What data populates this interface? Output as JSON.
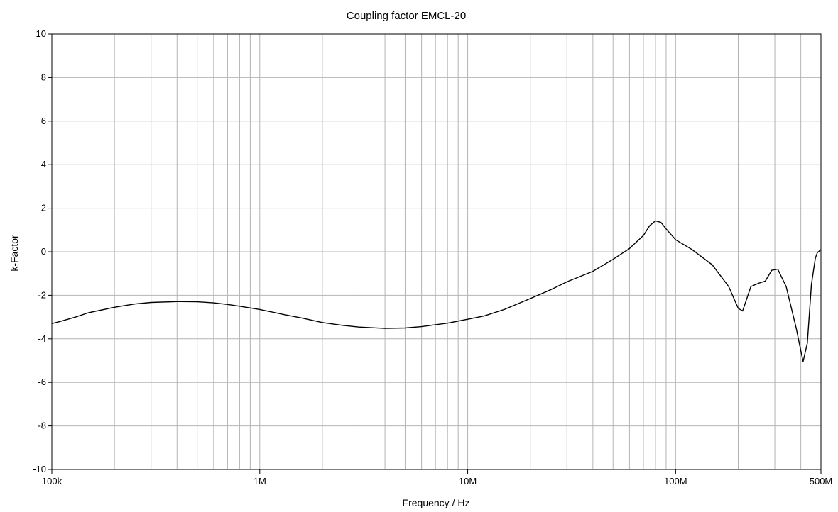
{
  "chart_data": {
    "type": "line",
    "title": "Coupling factor EMCL-20",
    "xlabel": "Frequency / Hz",
    "ylabel": "k-Factor",
    "xscale": "log",
    "xlim": [
      100000,
      500000000
    ],
    "ylim": [
      -10,
      10
    ],
    "grid": true,
    "line_color": "#000000",
    "grid_color": "#b4b4b4",
    "x_tick_labels": [
      {
        "value": 100000,
        "label": "100k"
      },
      {
        "value": 1000000,
        "label": "1M"
      },
      {
        "value": 10000000,
        "label": "10M"
      },
      {
        "value": 100000000,
        "label": "100M"
      },
      {
        "value": 500000000,
        "label": "500M"
      }
    ],
    "y_ticks": [
      10,
      8,
      6,
      4,
      2,
      0,
      -2,
      -4,
      -6,
      -8,
      -10
    ],
    "y_tick_labels": [
      "10",
      "8",
      "6",
      "4",
      "2",
      "0",
      "-2",
      "-4",
      "-6",
      "-8",
      "-10"
    ],
    "series": [
      {
        "points": [
          [
            100000,
            -3.3
          ],
          [
            110000,
            -3.2
          ],
          [
            130000,
            -3.0
          ],
          [
            150000,
            -2.8
          ],
          [
            200000,
            -2.55
          ],
          [
            250000,
            -2.4
          ],
          [
            300000,
            -2.33
          ],
          [
            400000,
            -2.29
          ],
          [
            500000,
            -2.3
          ],
          [
            600000,
            -2.35
          ],
          [
            700000,
            -2.42
          ],
          [
            800000,
            -2.5
          ],
          [
            1000000,
            -2.65
          ],
          [
            1300000,
            -2.88
          ],
          [
            1600000,
            -3.05
          ],
          [
            2000000,
            -3.25
          ],
          [
            2500000,
            -3.38
          ],
          [
            3000000,
            -3.46
          ],
          [
            4000000,
            -3.52
          ],
          [
            5000000,
            -3.5
          ],
          [
            6000000,
            -3.44
          ],
          [
            8000000,
            -3.28
          ],
          [
            10000000,
            -3.1
          ],
          [
            12000000,
            -2.95
          ],
          [
            15000000,
            -2.65
          ],
          [
            20000000,
            -2.15
          ],
          [
            25000000,
            -1.75
          ],
          [
            30000000,
            -1.38
          ],
          [
            40000000,
            -0.9
          ],
          [
            50000000,
            -0.35
          ],
          [
            60000000,
            0.15
          ],
          [
            70000000,
            0.75
          ],
          [
            75000000,
            1.2
          ],
          [
            80000000,
            1.42
          ],
          [
            85000000,
            1.35
          ],
          [
            90000000,
            1.05
          ],
          [
            100000000,
            0.55
          ],
          [
            120000000,
            0.1
          ],
          [
            150000000,
            -0.6
          ],
          [
            180000000,
            -1.6
          ],
          [
            200000000,
            -2.6
          ],
          [
            210000000,
            -2.72
          ],
          [
            230000000,
            -1.6
          ],
          [
            250000000,
            -1.45
          ],
          [
            270000000,
            -1.35
          ],
          [
            290000000,
            -0.85
          ],
          [
            310000000,
            -0.8
          ],
          [
            340000000,
            -1.6
          ],
          [
            380000000,
            -3.5
          ],
          [
            410000000,
            -5.05
          ],
          [
            430000000,
            -4.2
          ],
          [
            450000000,
            -1.5
          ],
          [
            470000000,
            -0.3
          ],
          [
            480000000,
            -0.05
          ],
          [
            500000000,
            0.1
          ]
        ]
      }
    ]
  }
}
